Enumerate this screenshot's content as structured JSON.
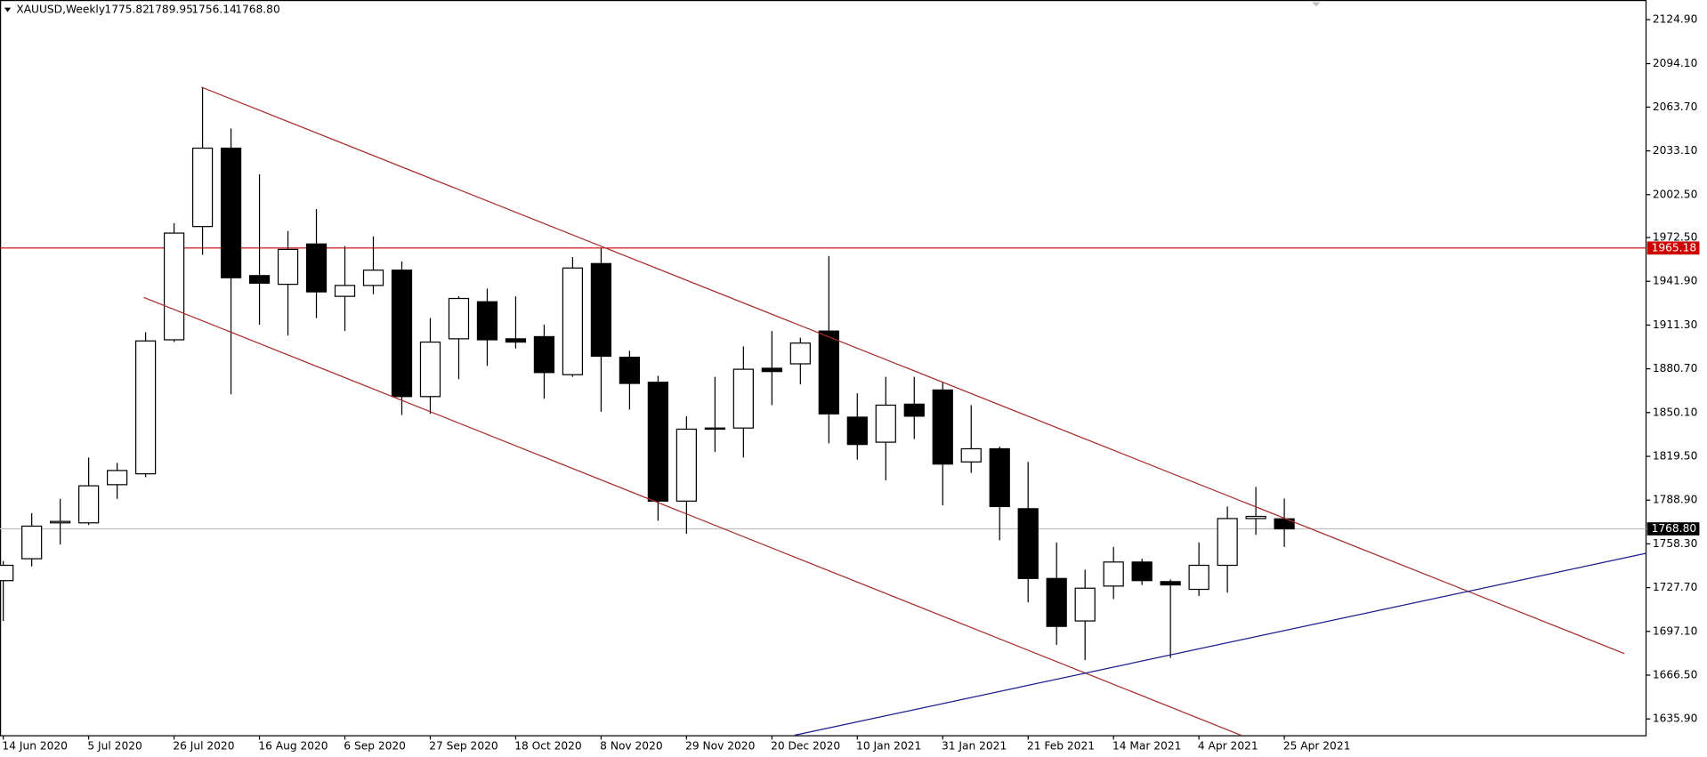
{
  "chart_data": {
    "type": "candlestick",
    "title": "XAUUSD,Weekly",
    "header_ohlc": [
      "1775.82",
      "1789.95",
      "1756.14",
      "1768.80"
    ],
    "categories": [
      "14 Jun 2020",
      null,
      null,
      "5 Jul 2020",
      null,
      null,
      "26 Jul 2020",
      null,
      null,
      "16 Aug 2020",
      null,
      null,
      "6 Sep 2020",
      null,
      null,
      "27 Sep 2020",
      null,
      null,
      "18 Oct 2020",
      null,
      null,
      "8 Nov 2020",
      null,
      null,
      "29 Nov 2020",
      null,
      null,
      "20 Dec 2020",
      null,
      null,
      "10 Jan 2021",
      null,
      null,
      "31 Jan 2021",
      null,
      null,
      "21 Feb 2021",
      null,
      null,
      "14 Mar 2021",
      null,
      null,
      "4 Apr 2021",
      null,
      null,
      "25 Apr 2021"
    ],
    "open": [
      1732.6,
      1747.9,
      1773.0,
      1773.0,
      1799.7,
      1807.3,
      1901.0,
      1980.2,
      2035.0,
      1945.9,
      1939.8,
      1968.0,
      1931.4,
      1939.0,
      1949.7,
      1861.3,
      1901.7,
      1927.6,
      1901.7,
      1903.2,
      1876.6,
      1954.3,
      1888.8,
      1871.3,
      1788.2,
      1838.5,
      1839.3,
      1881.1,
      1884.2,
      1907.1,
      1846.9,
      1829.4,
      1856.0,
      1865.9,
      1815.6,
      1824.8,
      1782.9,
      1734.1,
      1704.4,
      1728.8,
      1745.6,
      1731.9,
      1726.5,
      1743.3,
      1776.0,
      1775.82
    ],
    "high": [
      1746.3,
      1779.8,
      1789.8,
      1818.7,
      1814.9,
      1906.3,
      1982.5,
      2077.7,
      2048.7,
      2016.7,
      1977.1,
      1992.4,
      1966.5,
      1973.3,
      1955.8,
      1916.2,
      1931.4,
      1936.8,
      1931.4,
      1911.6,
      1958.8,
      1964.9,
      1893.3,
      1875.8,
      1847.6,
      1875.1,
      1896.4,
      1907.1,
      1902.5,
      1959.6,
      1863.6,
      1875.1,
      1875.1,
      1871.3,
      1855.3,
      1826.3,
      1815.6,
      1759.3,
      1740.2,
      1756.2,
      1747.9,
      1733.4,
      1759.3,
      1784.4,
      1798.1,
      1789.95
    ],
    "low": [
      1704.4,
      1742.5,
      1757.8,
      1771.5,
      1789.8,
      1805.0,
      1899.4,
      1960.4,
      1862.9,
      1911.6,
      1904.0,
      1916.2,
      1907.1,
      1932.9,
      1848.4,
      1849.2,
      1873.5,
      1882.7,
      1894.9,
      1859.8,
      1875.1,
      1850.7,
      1852.2,
      1774.5,
      1765.4,
      1822.5,
      1818.7,
      1855.3,
      1869.8,
      1828.6,
      1817.2,
      1802.7,
      1831.6,
      1785.2,
      1808.0,
      1760.8,
      1717.4,
      1687.7,
      1677.0,
      1719.7,
      1729.6,
      1678.5,
      1721.9,
      1724.2,
      1764.6,
      1756.14
    ],
    "close": [
      1743.3,
      1770.7,
      1774.0,
      1798.9,
      1809.6,
      1900.2,
      1975.6,
      2035.0,
      1944.4,
      1940.6,
      1964.2,
      1934.5,
      1939.0,
      1949.7,
      1861.3,
      1899.4,
      1929.9,
      1901.0,
      1899.4,
      1878.1,
      1951.2,
      1889.5,
      1870.5,
      1788.2,
      1838.5,
      1839.3,
      1880.4,
      1878.8,
      1898.7,
      1849.2,
      1827.8,
      1855.3,
      1847.6,
      1814.1,
      1824.8,
      1784.4,
      1734.1,
      1700.6,
      1727.3,
      1745.6,
      1732.6,
      1729.6,
      1743.3,
      1776.0,
      1777.5,
      1768.8
    ],
    "up_color": "#ffffff",
    "down_color": "#000000",
    "ylim": [
      1624.5,
      2138.6
    ],
    "yticks": [
      {
        "value": 2124.9,
        "label": "2124.90"
      },
      {
        "value": 2094.1,
        "label": "2094.10"
      },
      {
        "value": 2063.7,
        "label": "2063.70"
      },
      {
        "value": 2033.1,
        "label": "2033.10"
      },
      {
        "value": 2002.5,
        "label": "2002.50"
      },
      {
        "value": 1972.5,
        "label": "1972.50"
      },
      {
        "value": 1941.9,
        "label": "1941.90"
      },
      {
        "value": 1911.3,
        "label": "1911.30"
      },
      {
        "value": 1880.7,
        "label": "1880.70"
      },
      {
        "value": 1850.1,
        "label": "1850.10"
      },
      {
        "value": 1819.5,
        "label": "1819.50"
      },
      {
        "value": 1788.9,
        "label": "1788.90"
      },
      {
        "value": 1758.3,
        "label": "1758.30"
      },
      {
        "value": 1727.7,
        "label": "1727.70"
      },
      {
        "value": 1697.1,
        "label": "1697.10"
      },
      {
        "value": 1666.5,
        "label": "1666.50"
      },
      {
        "value": 1635.9,
        "label": "1635.90"
      }
    ],
    "level": {
      "value": 1965.18,
      "label": "1965.18",
      "color": "#cc0000"
    },
    "current_price": {
      "value": 1768.8,
      "label": "1768.80",
      "color": "#c0c0c0"
    }
  }
}
